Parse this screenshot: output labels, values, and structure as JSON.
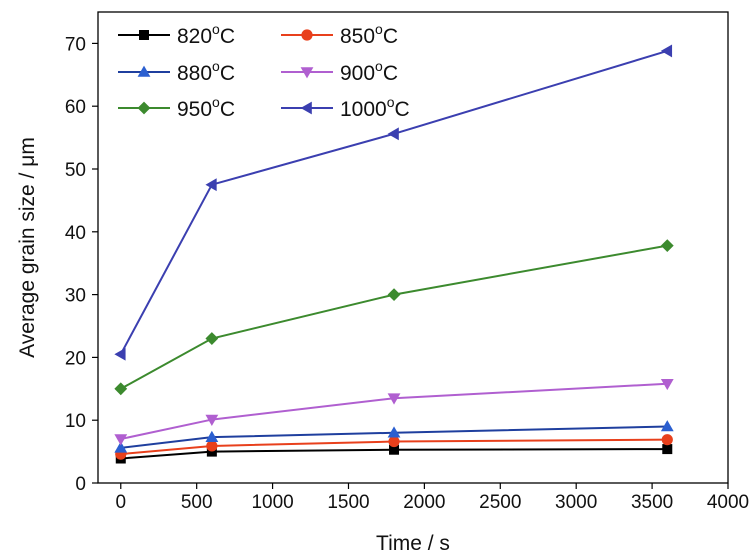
{
  "chart_data": {
    "type": "line",
    "title": "",
    "xlabel": "Time / s",
    "ylabel": "Average grain size / μm",
    "xlim": [
      -150,
      4000
    ],
    "ylim": [
      0,
      75
    ],
    "xticks": [
      0,
      500,
      1000,
      1500,
      2000,
      2500,
      3000,
      3500,
      4000
    ],
    "yticks": [
      0,
      10,
      20,
      30,
      40,
      50,
      60,
      70
    ],
    "grid": false,
    "legend_position": "top-left",
    "x": [
      0,
      600,
      1800,
      3600
    ],
    "series": [
      {
        "name": "820°C",
        "label_num": "820",
        "label_sup": "o",
        "label_unit": "C",
        "marker": "square",
        "line_color": "#000000",
        "marker_color": "#000000",
        "values": [
          3.9,
          5.0,
          5.3,
          5.4
        ]
      },
      {
        "name": "850°C",
        "label_num": "850",
        "label_sup": "o",
        "label_unit": "C",
        "marker": "circle",
        "line_color": "#e8401c",
        "marker_color": "#e8401c",
        "values": [
          4.6,
          5.9,
          6.6,
          6.9
        ]
      },
      {
        "name": "880°C",
        "label_num": "880",
        "label_sup": "o",
        "label_unit": "C",
        "marker": "triangle-up",
        "line_color": "#1f3f9e",
        "marker_color": "#2b5fd0",
        "values": [
          5.6,
          7.3,
          8.0,
          9.0
        ]
      },
      {
        "name": "900°C",
        "label_num": "900",
        "label_sup": "o",
        "label_unit": "C",
        "marker": "triangle-down",
        "line_color": "#b05fd0",
        "marker_color": "#b05fd0",
        "values": [
          7.0,
          10.1,
          13.5,
          15.8
        ]
      },
      {
        "name": "950°C",
        "label_num": "950",
        "label_sup": "o",
        "label_unit": "C",
        "marker": "diamond",
        "line_color": "#3c8a2e",
        "marker_color": "#3c8a2e",
        "values": [
          15.0,
          23.0,
          30.0,
          37.8
        ]
      },
      {
        "name": "1000°C",
        "label_num": "1000",
        "label_sup": "o",
        "label_unit": "C",
        "marker": "triangle-left",
        "line_color": "#3b3fb0",
        "marker_color": "#3b3fb0",
        "values": [
          20.5,
          47.5,
          55.6,
          68.8
        ]
      }
    ]
  }
}
